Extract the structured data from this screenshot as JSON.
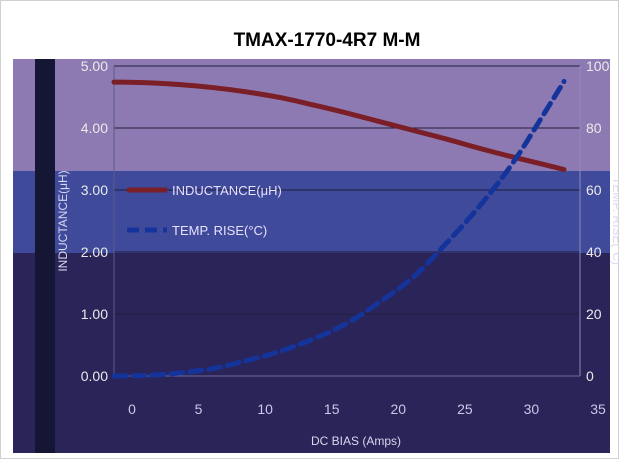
{
  "chart_data": {
    "type": "line",
    "title": "TMAX-1770-4R7 M-M",
    "xlabel": "DC BIAS (Amps)",
    "ylabel": "INDUCTANCE(μH)",
    "y2label": "TEMP. RISE(°C)",
    "xlim": [
      0,
      35
    ],
    "ylim": [
      0,
      5
    ],
    "y2lim": [
      0,
      100
    ],
    "x_ticks": [
      "0",
      "5",
      "10",
      "15",
      "20",
      "25",
      "30",
      "35"
    ],
    "y_ticks": [
      "0.00",
      "1.00",
      "2.00",
      "3.00",
      "4.00",
      "5.00"
    ],
    "y2_ticks": [
      "0",
      "20",
      "40",
      "60",
      "80",
      "100"
    ],
    "legend_position": "left",
    "series": [
      {
        "name": "INDUCTANCE(μH)",
        "axis": "left",
        "color": "#7a1f28",
        "style": "solid",
        "x": [
          0,
          2.5,
          5,
          7.5,
          10,
          12.5,
          15,
          17.5,
          20,
          22.5,
          25,
          27.5,
          30,
          32.5,
          33.8
        ],
        "y": [
          4.74,
          4.73,
          4.7,
          4.65,
          4.58,
          4.49,
          4.37,
          4.24,
          4.1,
          3.96,
          3.82,
          3.67,
          3.53,
          3.4,
          3.33
        ]
      },
      {
        "name": "TEMP. RISE(°C)",
        "axis": "right",
        "color": "#14349c",
        "style": "dashed",
        "x": [
          0,
          2.5,
          5,
          7.5,
          10,
          12.5,
          15,
          17.5,
          20,
          22.5,
          25,
          27.5,
          30,
          32.5,
          33.8
        ],
        "y": [
          0,
          0.2,
          1,
          2.5,
          5,
          8,
          12,
          17,
          24,
          32,
          43,
          55,
          69,
          86,
          95
        ]
      }
    ]
  }
}
